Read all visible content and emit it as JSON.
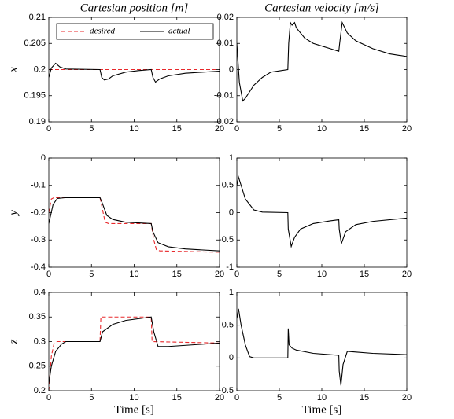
{
  "chart_data": [
    {
      "type": "line",
      "title": "Cartesian position [m]",
      "ylabel": "x",
      "legend": "upper center",
      "xlim": [
        0,
        20
      ],
      "xticks": [
        0,
        5,
        10,
        15,
        20
      ],
      "ylim": [
        0.19,
        0.21
      ],
      "yticks": [
        0.19,
        0.195,
        0.2,
        0.205,
        0.21
      ],
      "series": [
        {
          "name": "desired",
          "color": "#e8282b",
          "dashed": true,
          "x": [
            0,
            20
          ],
          "values": [
            0.2,
            0.2
          ]
        },
        {
          "name": "actual",
          "color": "#000000",
          "x": [
            0,
            0.3,
            0.8,
            1.3,
            2,
            6,
            6.2,
            6.5,
            7,
            7.5,
            9,
            10.5,
            12,
            12.2,
            12.5,
            13,
            14,
            16,
            20
          ],
          "values": [
            0.1985,
            0.2003,
            0.2012,
            0.2005,
            0.2001,
            0.2,
            0.1985,
            0.198,
            0.1982,
            0.1988,
            0.1995,
            0.1998,
            0.2,
            0.1985,
            0.1976,
            0.1982,
            0.1988,
            0.1993,
            0.1997
          ]
        }
      ]
    },
    {
      "type": "line",
      "title": "Cartesian velocity [m/s]",
      "xlim": [
        0,
        20
      ],
      "xticks": [
        0,
        5,
        10,
        15,
        20
      ],
      "ylim": [
        -0.02,
        0.02
      ],
      "yticks": [
        -0.02,
        -0.01,
        0,
        0.01,
        0.02
      ],
      "series": [
        {
          "color": "#000000",
          "x": [
            0,
            0.3,
            0.7,
            1,
            2,
            3,
            4,
            6,
            6.1,
            6.3,
            6.5,
            6.8,
            7,
            8,
            9,
            10,
            11,
            12,
            12.1,
            12.4,
            13,
            14,
            16,
            18,
            20
          ],
          "values": [
            0.01,
            -0.005,
            -0.012,
            -0.011,
            -0.006,
            -0.003,
            -0.001,
            0,
            0.01,
            0.018,
            0.017,
            0.018,
            0.016,
            0.012,
            0.01,
            0.009,
            0.008,
            0.007,
            0.01,
            0.018,
            0.014,
            0.011,
            0.008,
            0.006,
            0.005
          ]
        }
      ]
    },
    {
      "type": "line",
      "ylabel": "y",
      "xlim": [
        0,
        20
      ],
      "xticks": [
        0,
        5,
        10,
        15,
        20
      ],
      "ylim": [
        -0.4,
        0
      ],
      "yticks": [
        -0.4,
        -0.3,
        -0.2,
        -0.1,
        0
      ],
      "series": [
        {
          "name": "desired",
          "color": "#e8282b",
          "dashed": true,
          "x": [
            0,
            0.3,
            0.6,
            6,
            6.3,
            6.6,
            7,
            12,
            12.3,
            12.6,
            13,
            20
          ],
          "values": [
            -0.2,
            -0.15,
            -0.145,
            -0.145,
            -0.19,
            -0.235,
            -0.24,
            -0.24,
            -0.3,
            -0.335,
            -0.34,
            -0.345
          ]
        },
        {
          "name": "actual",
          "color": "#000000",
          "x": [
            0,
            0.5,
            1,
            2,
            6,
            6.2,
            6.8,
            7.5,
            9,
            12,
            12.2,
            12.8,
            14,
            16,
            20
          ],
          "values": [
            -0.24,
            -0.17,
            -0.148,
            -0.145,
            -0.145,
            -0.16,
            -0.21,
            -0.225,
            -0.235,
            -0.24,
            -0.27,
            -0.31,
            -0.325,
            -0.333,
            -0.34
          ]
        }
      ]
    },
    {
      "type": "line",
      "xlim": [
        0,
        20
      ],
      "xticks": [
        0,
        5,
        10,
        15,
        20
      ],
      "ylim": [
        -1,
        1
      ],
      "yticks": [
        -1,
        -0.5,
        0,
        0.5,
        1
      ],
      "series": [
        {
          "color": "#000000",
          "x": [
            0,
            0.2,
            0.5,
            1,
            2,
            3,
            6,
            6.05,
            6.4,
            6.8,
            7.5,
            9,
            11,
            12,
            12.05,
            12.3,
            12.8,
            14,
            16,
            20
          ],
          "values": [
            0.5,
            0.65,
            0.5,
            0.25,
            0.05,
            0.01,
            0,
            -0.3,
            -0.62,
            -0.45,
            -0.3,
            -0.2,
            -0.15,
            -0.13,
            -0.3,
            -0.57,
            -0.35,
            -0.22,
            -0.16,
            -0.1
          ]
        }
      ]
    },
    {
      "type": "line",
      "ylabel": "z",
      "xlabel": "Time [s]",
      "xlim": [
        0,
        20
      ],
      "xticks": [
        0,
        5,
        10,
        15,
        20
      ],
      "ylim": [
        0.2,
        0.4
      ],
      "yticks": [
        0.2,
        0.25,
        0.3,
        0.35,
        0.4
      ],
      "series": [
        {
          "name": "desired",
          "color": "#e8282b",
          "dashed": true,
          "x": [
            0,
            0.3,
            0.6,
            1,
            6,
            6.1,
            12,
            12.1,
            20
          ],
          "values": [
            0.2,
            0.27,
            0.295,
            0.3,
            0.3,
            0.35,
            0.35,
            0.3,
            0.297
          ]
        },
        {
          "name": "actual",
          "color": "#000000",
          "x": [
            0,
            0.3,
            0.8,
            1.5,
            2,
            6,
            6.3,
            7.5,
            9,
            12,
            12.3,
            12.8,
            14,
            20
          ],
          "values": [
            0.215,
            0.25,
            0.28,
            0.295,
            0.3,
            0.3,
            0.32,
            0.335,
            0.343,
            0.35,
            0.32,
            0.29,
            0.29,
            0.297
          ]
        }
      ]
    },
    {
      "type": "line",
      "xlabel": "Time [s]",
      "xlim": [
        0,
        20
      ],
      "xticks": [
        0,
        5,
        10,
        15,
        20
      ],
      "ylim": [
        -0.5,
        1
      ],
      "yticks": [
        -0.5,
        0,
        0.5,
        1
      ],
      "series": [
        {
          "color": "#000000",
          "x": [
            0,
            0.2,
            0.5,
            1,
            1.5,
            2,
            6,
            6.05,
            6.15,
            6.5,
            7,
            9,
            11,
            12,
            12.05,
            12.25,
            12.5,
            13,
            14,
            16,
            20
          ],
          "values": [
            0.6,
            0.75,
            0.5,
            0.2,
            0.02,
            0,
            0,
            0.45,
            0.2,
            0.15,
            0.12,
            0.07,
            0.05,
            0.04,
            -0.2,
            -0.42,
            -0.1,
            0.1,
            0.09,
            0.07,
            0.05
          ]
        }
      ]
    }
  ]
}
